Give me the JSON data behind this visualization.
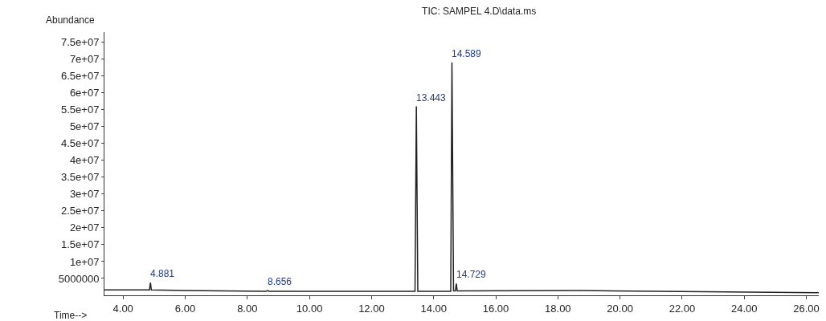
{
  "chart_data": {
    "type": "line",
    "title": "TIC: SAMPEL 4.D\\data.ms",
    "xlabel": "Time-->",
    "ylabel": "Abundance",
    "x": [
      3.4,
      4.85,
      4.881,
      4.91,
      6.0,
      8.6,
      8.656,
      8.7,
      13.4,
      13.443,
      13.49,
      14.55,
      14.589,
      14.64,
      14.7,
      14.729,
      14.76,
      18.7,
      26.4
    ],
    "series": [
      {
        "color": "#222222",
        "values": [
          1600000,
          1600000,
          3800000,
          1600000,
          1400000,
          1200000,
          1400000,
          1200000,
          1200000,
          56000000,
          1200000,
          1200000,
          69000000,
          1300000,
          1300000,
          3500000,
          1300000,
          1400000,
          800000
        ]
      }
    ],
    "annotations": [
      {
        "text": "4.881",
        "x": 4.881,
        "y": 3800000
      },
      {
        "text": "8.656",
        "x": 8.656,
        "y": 1400000
      },
      {
        "text": "13.443",
        "x": 13.443,
        "y": 56000000
      },
      {
        "text": "14.589",
        "x": 14.589,
        "y": 69000000
      },
      {
        "text": "14.729",
        "x": 14.729,
        "y": 3500000
      }
    ],
    "xlim": [
      3.4,
      26.4
    ],
    "ylim": [
      0,
      78000000
    ],
    "xticks": [
      {
        "value": 4,
        "label": "4.00"
      },
      {
        "value": 6,
        "label": "6.00"
      },
      {
        "value": 8,
        "label": "8.00"
      },
      {
        "value": 10,
        "label": "10.00"
      },
      {
        "value": 12,
        "label": "12.00"
      },
      {
        "value": 14,
        "label": "14.00"
      },
      {
        "value": 16,
        "label": "16.00"
      },
      {
        "value": 18,
        "label": "18.00"
      },
      {
        "value": 20,
        "label": "20.00"
      },
      {
        "value": 22,
        "label": "22.00"
      },
      {
        "value": 24,
        "label": "24.00"
      },
      {
        "value": 26,
        "label": "26.00"
      }
    ],
    "yticks": [
      5000000,
      {
        "value": 10000000,
        "label": "1e+07"
      },
      {
        "value": 15000000,
        "label": "1.5e+07"
      },
      {
        "value": 20000000,
        "label": "2e+07"
      },
      {
        "value": 25000000,
        "label": "2.5e+07"
      },
      {
        "value": 30000000,
        "label": "3e+07"
      },
      {
        "value": 35000000,
        "label": "3.5e+07"
      },
      {
        "value": 40000000,
        "label": "4e+07"
      },
      {
        "value": 45000000,
        "label": "4.5e+07"
      },
      {
        "value": 50000000,
        "label": "5e+07"
      },
      {
        "value": 55000000,
        "label": "5.5e+07"
      },
      {
        "value": 60000000,
        "label": "6e+07"
      },
      {
        "value": 65000000,
        "label": "6.5e+07"
      },
      {
        "value": 70000000,
        "label": "7e+07"
      },
      {
        "value": 75000000,
        "label": "7.5e+07"
      }
    ],
    "marker": "none",
    "line_style": "solid"
  }
}
